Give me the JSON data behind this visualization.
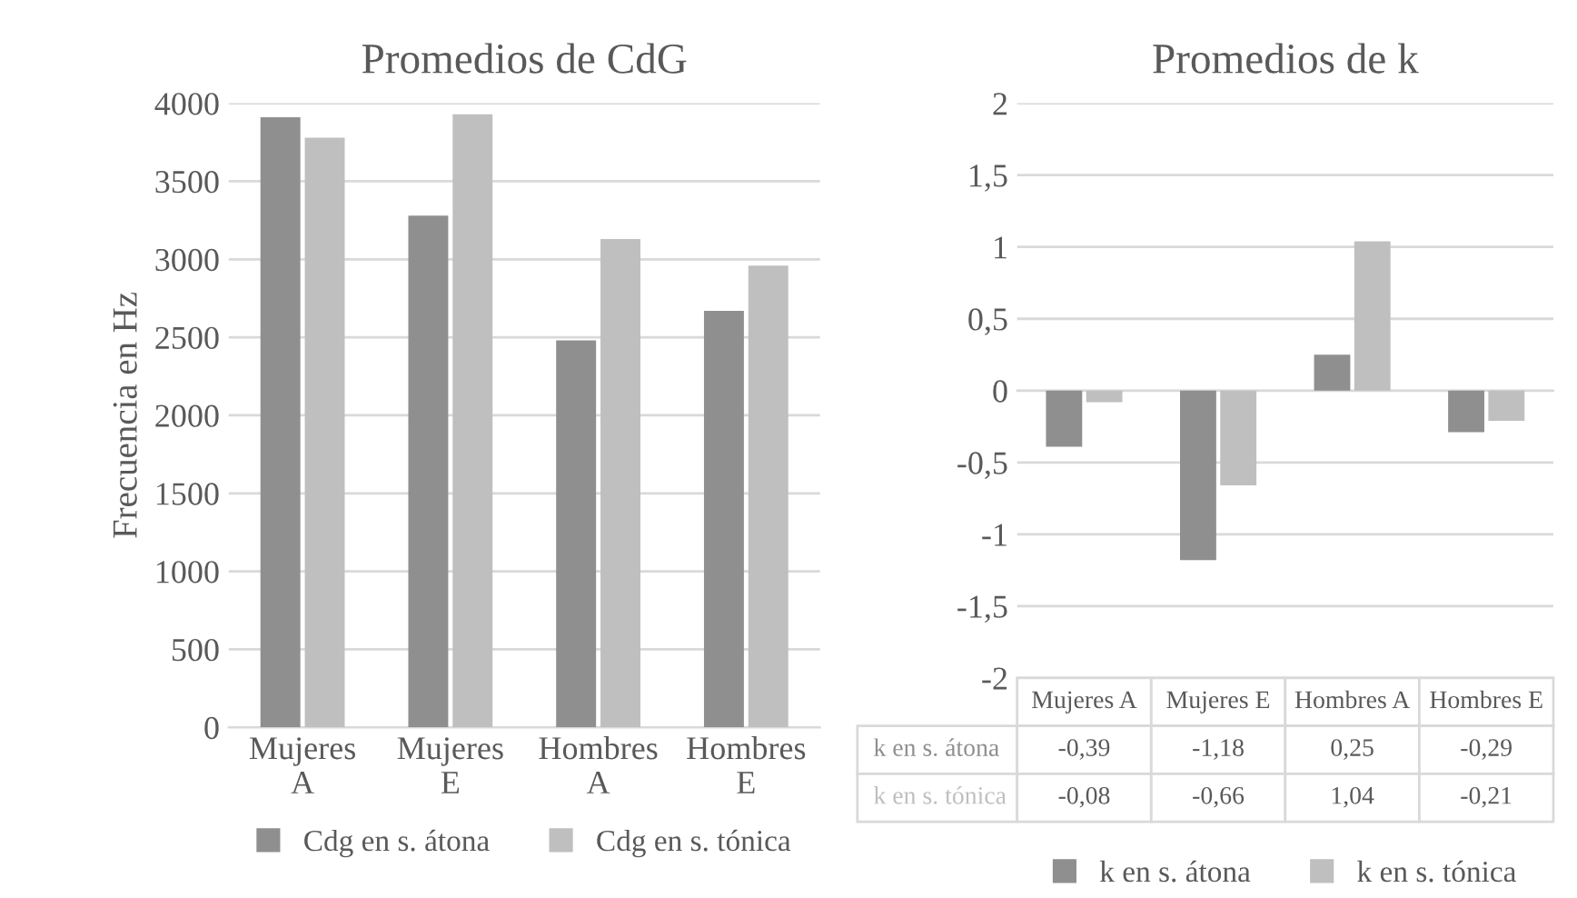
{
  "chart_data": [
    {
      "type": "bar",
      "title": "Promedios de CdG",
      "ylabel": "Frecuencia en Hz",
      "categories": [
        "Mujeres A",
        "Mujeres E",
        "Hombres A",
        "Hombres E"
      ],
      "series": [
        {
          "name": "Cdg en s. átona",
          "color": "#8f8f8f",
          "values": [
            3910,
            3280,
            2480,
            2670
          ]
        },
        {
          "name": "Cdg en s. tónica",
          "color": "#bfbfbf",
          "values": [
            3780,
            3930,
            3130,
            2960
          ]
        }
      ],
      "ylim": [
        0,
        4000
      ],
      "yticks": [
        0,
        500,
        1000,
        1500,
        2000,
        2500,
        3000,
        3500,
        4000
      ],
      "grid": "y",
      "legend": "bottom"
    },
    {
      "type": "bar",
      "title": "Promedios de k",
      "categories": [
        "Mujeres A",
        "Mujeres E",
        "Hombres A",
        "Hombres E"
      ],
      "series": [
        {
          "name": "k en s. átona",
          "color": "#8f8f8f",
          "values": [
            -0.39,
            -1.18,
            0.25,
            -0.29
          ],
          "value_labels": [
            "-0,39",
            "-1,18",
            "0,25",
            "-0,29"
          ]
        },
        {
          "name": "k en s. tónica",
          "color": "#bfbfbf",
          "values": [
            -0.08,
            -0.66,
            1.04,
            -0.21
          ],
          "value_labels": [
            "-0,08",
            "-0,66",
            "1,04",
            "-0,21"
          ]
        }
      ],
      "ylim": [
        -2,
        2
      ],
      "yticks": [
        -2,
        {
          "value": -1.5,
          "label": "-1,5"
        },
        -1,
        {
          "value": -0.5,
          "label": "-0,5"
        },
        0,
        {
          "value": 0.5,
          "label": "0,5"
        },
        1,
        {
          "value": 1.5,
          "label": "1,5"
        },
        2
      ],
      "tick_labels": "y",
      "grid": "y",
      "legend": "bottom"
    }
  ]
}
